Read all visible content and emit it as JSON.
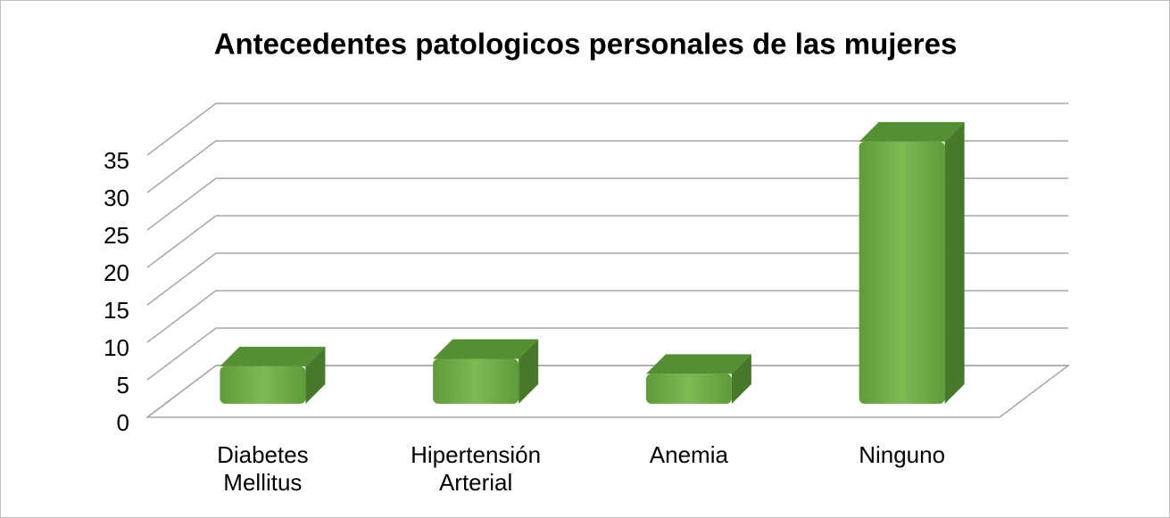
{
  "chart_data": {
    "type": "bar",
    "title": "Antecedentes patologicos personales de las mujeres",
    "categories": [
      "Diabetes Mellitus",
      "Hipertensión Arterial",
      "Anemia",
      "Ninguno"
    ],
    "values": [
      5,
      6,
      4,
      35
    ],
    "color": "#70ad47",
    "ylim": [
      0,
      35
    ],
    "yticks": [
      0,
      5,
      10,
      15,
      20,
      25,
      30,
      35
    ],
    "grid": true
  }
}
